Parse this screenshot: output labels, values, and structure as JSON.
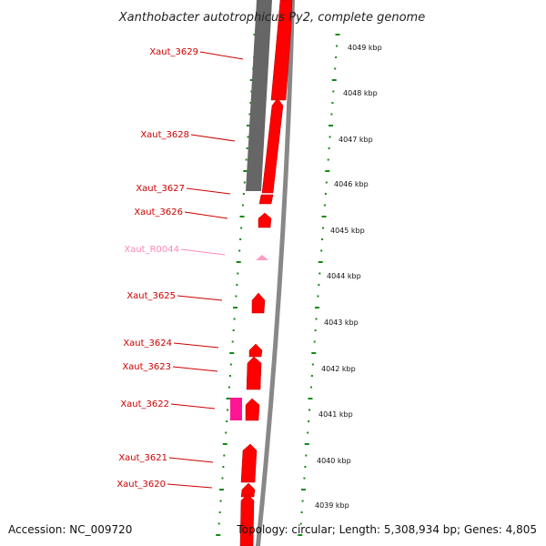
{
  "title": "Xanthobacter autotrophicus Py2, complete genome",
  "accession": "Accession: NC_009720",
  "summary": "Topology: circular; Length: 5,308,934 bp; Genes: 4,805",
  "colors": {
    "gene": "#ff0000",
    "rna": "#ff9ec4",
    "pink_feature": "#ff1493",
    "gray_feature": "#666666",
    "backbone": "#888888",
    "tick": "#138a13",
    "label": "#cc0000",
    "label_rna": "#ff88bb"
  },
  "kbp_labels": [
    "4049 kbp",
    "4048 kbp",
    "4047 kbp",
    "4046 kbp",
    "4045 kbp",
    "4044 kbp",
    "4043 kbp",
    "4042 kbp",
    "4041 kbp",
    "4040 kbp",
    "4039 kbp"
  ],
  "genes": [
    {
      "name": "Xaut_3629",
      "type": "cds"
    },
    {
      "name": "Xaut_3628",
      "type": "cds"
    },
    {
      "name": "Xaut_3627",
      "type": "cds"
    },
    {
      "name": "Xaut_3626",
      "type": "cds"
    },
    {
      "name": "Xaut_R0044",
      "type": "rna"
    },
    {
      "name": "Xaut_3625",
      "type": "cds"
    },
    {
      "name": "Xaut_3624",
      "type": "cds"
    },
    {
      "name": "Xaut_3623",
      "type": "cds"
    },
    {
      "name": "Xaut_3622",
      "type": "cds"
    },
    {
      "name": "Xaut_3621",
      "type": "cds"
    },
    {
      "name": "Xaut_3620",
      "type": "cds"
    }
  ]
}
